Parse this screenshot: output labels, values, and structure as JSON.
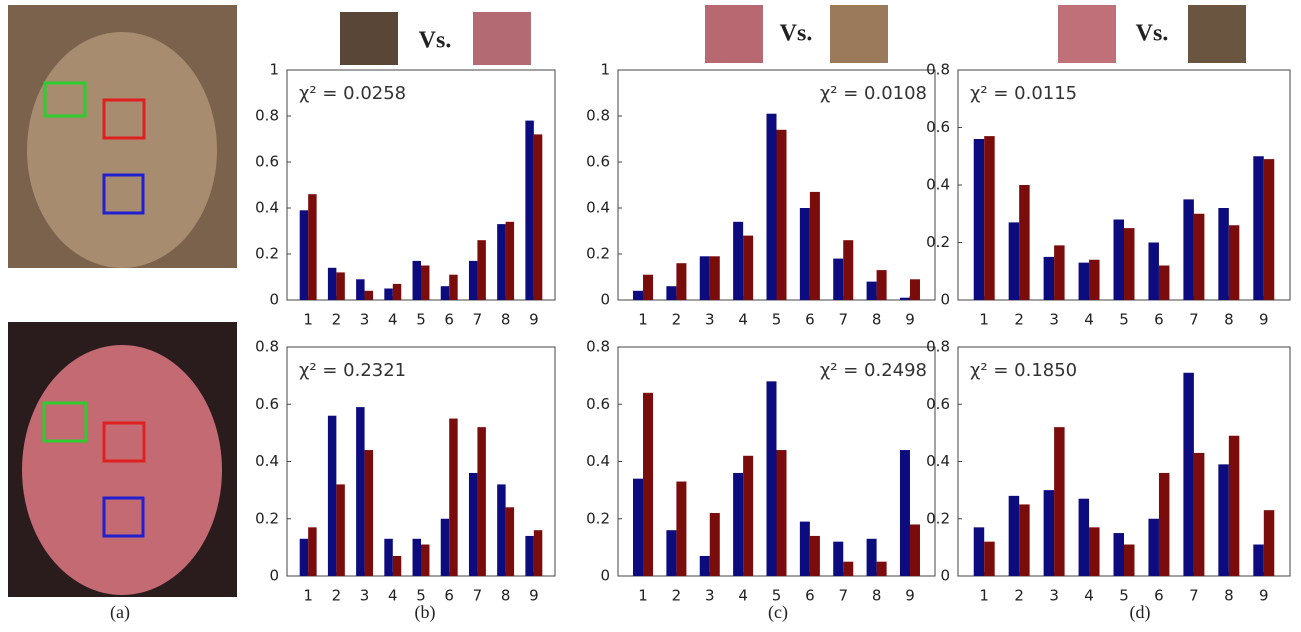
{
  "chart_data": [
    {
      "type": "bar",
      "annotation": "χ² = 0.0258",
      "categories": [
        "1",
        "2",
        "3",
        "4",
        "5",
        "6",
        "7",
        "8",
        "9"
      ],
      "series": [
        {
          "color": "#0c0c7e",
          "values": [
            0.39,
            0.14,
            0.09,
            0.05,
            0.17,
            0.06,
            0.17,
            0.33,
            0.78
          ]
        },
        {
          "color": "#7a0c0c",
          "values": [
            0.46,
            0.12,
            0.04,
            0.07,
            0.15,
            0.11,
            0.26,
            0.34,
            0.72
          ]
        }
      ],
      "ylim": [
        0,
        1
      ],
      "yticks": [
        0,
        0.2,
        0.4,
        0.6,
        0.8,
        1
      ]
    },
    {
      "type": "bar",
      "annotation": "χ² = 0.0108",
      "categories": [
        "1",
        "2",
        "3",
        "4",
        "5",
        "6",
        "7",
        "8",
        "9"
      ],
      "series": [
        {
          "color": "#0c0c7e",
          "values": [
            0.04,
            0.06,
            0.19,
            0.34,
            0.81,
            0.4,
            0.18,
            0.08,
            0.01
          ]
        },
        {
          "color": "#7a0c0c",
          "values": [
            0.11,
            0.16,
            0.19,
            0.28,
            0.74,
            0.47,
            0.26,
            0.13,
            0.09
          ]
        }
      ],
      "ylim": [
        0,
        1
      ],
      "yticks": [
        0,
        0.2,
        0.4,
        0.6,
        0.8,
        1
      ]
    },
    {
      "type": "bar",
      "annotation": "χ² = 0.0115",
      "categories": [
        "1",
        "2",
        "3",
        "4",
        "5",
        "6",
        "7",
        "8",
        "9"
      ],
      "series": [
        {
          "color": "#0c0c7e",
          "values": [
            0.56,
            0.27,
            0.15,
            0.13,
            0.28,
            0.2,
            0.35,
            0.32,
            0.5
          ]
        },
        {
          "color": "#7a0c0c",
          "values": [
            0.57,
            0.4,
            0.19,
            0.14,
            0.25,
            0.12,
            0.3,
            0.26,
            0.49
          ]
        }
      ],
      "ylim": [
        0,
        0.8
      ],
      "yticks": [
        0,
        0.2,
        0.4,
        0.6,
        0.8
      ]
    },
    {
      "type": "bar",
      "annotation": "χ² = 0.2321",
      "categories": [
        "1",
        "2",
        "3",
        "4",
        "5",
        "6",
        "7",
        "8",
        "9"
      ],
      "series": [
        {
          "color": "#0c0c7e",
          "values": [
            0.13,
            0.56,
            0.59,
            0.13,
            0.13,
            0.2,
            0.36,
            0.32,
            0.14
          ]
        },
        {
          "color": "#7a0c0c",
          "values": [
            0.17,
            0.32,
            0.44,
            0.07,
            0.11,
            0.55,
            0.52,
            0.24,
            0.16
          ]
        }
      ],
      "ylim": [
        0,
        0.8
      ],
      "yticks": [
        0,
        0.2,
        0.4,
        0.6,
        0.8
      ]
    },
    {
      "type": "bar",
      "annotation": "χ² = 0.2498",
      "categories": [
        "1",
        "2",
        "3",
        "4",
        "5",
        "6",
        "7",
        "8",
        "9"
      ],
      "series": [
        {
          "color": "#0c0c7e",
          "values": [
            0.34,
            0.16,
            0.07,
            0.36,
            0.68,
            0.19,
            0.12,
            0.13,
            0.44
          ]
        },
        {
          "color": "#7a0c0c",
          "values": [
            0.64,
            0.33,
            0.22,
            0.42,
            0.44,
            0.14,
            0.05,
            0.05,
            0.18
          ]
        }
      ],
      "ylim": [
        0,
        0.8
      ],
      "yticks": [
        0,
        0.2,
        0.4,
        0.6,
        0.8
      ]
    },
    {
      "type": "bar",
      "annotation": "χ² = 0.1850",
      "categories": [
        "1",
        "2",
        "3",
        "4",
        "5",
        "6",
        "7",
        "8",
        "9"
      ],
      "series": [
        {
          "color": "#0c0c7e",
          "values": [
            0.17,
            0.28,
            0.3,
            0.27,
            0.15,
            0.2,
            0.71,
            0.39,
            0.11
          ]
        },
        {
          "color": "#7a0c0c",
          "values": [
            0.12,
            0.25,
            0.52,
            0.17,
            0.11,
            0.36,
            0.43,
            0.49,
            0.23
          ]
        }
      ],
      "ylim": [
        0,
        0.8
      ],
      "yticks": [
        0,
        0.2,
        0.4,
        0.6,
        0.8
      ]
    }
  ],
  "vs_labels": [
    "Vs.",
    "Vs.",
    "Vs."
  ],
  "captions": [
    "(a)",
    "(b)",
    "(c)",
    "(d)"
  ]
}
